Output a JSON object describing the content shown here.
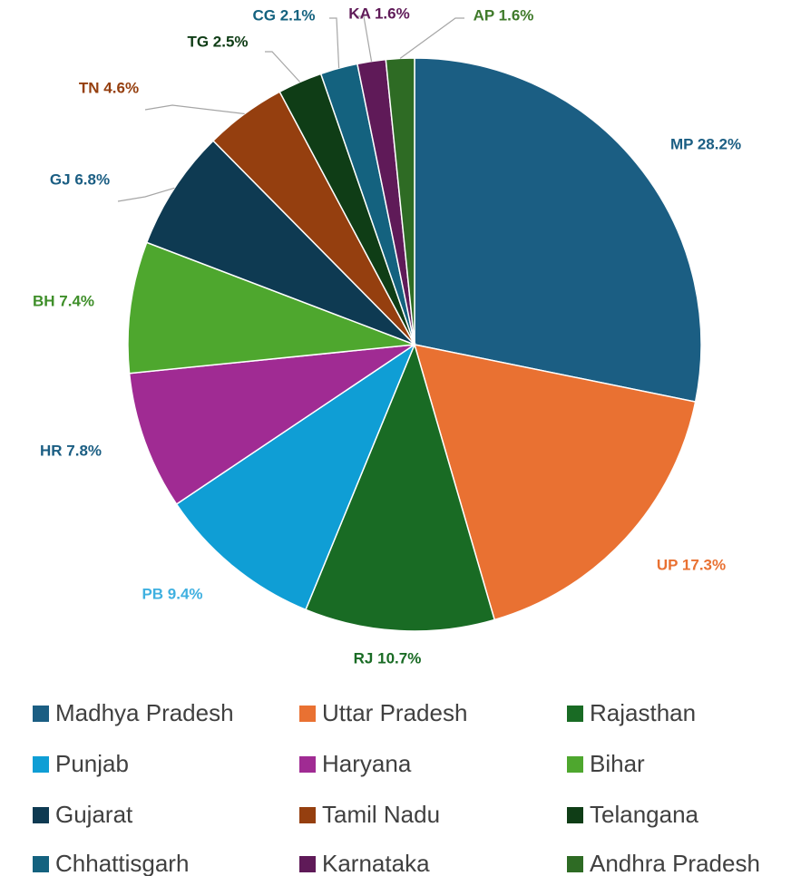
{
  "chart_data": {
    "type": "pie",
    "categories": [
      "Madhya Pradesh",
      "Uttar Pradesh",
      "Rajasthan",
      "Punjab",
      "Haryana",
      "Bihar",
      "Gujarat",
      "Tamil Nadu",
      "Telangana",
      "Chhattisgarh",
      "Karnataka",
      "Andhra Pradesh"
    ],
    "values": [
      28.2,
      17.3,
      10.7,
      9.4,
      7.8,
      7.4,
      6.8,
      4.6,
      2.5,
      2.1,
      1.6,
      1.6
    ],
    "value_labels": [
      "MP 28.2%",
      "UP 17.3%",
      "RJ 10.7%",
      "PB 9.4%",
      "HR 7.8%",
      "BH 7.4%",
      "GJ 6.8%",
      "TN 4.6%",
      "TG 2.5%",
      "CG 2.1%",
      "KA 1.6%",
      "AP 1.6%"
    ],
    "colors": [
      "#1b5e83",
      "#e97132",
      "#196b24",
      "#0f9ed5",
      "#a02b93",
      "#4ea72e",
      "#0e3a52",
      "#953f0f",
      "#0f3d16",
      "#14627f",
      "#5f1a58",
      "#2e6b24"
    ],
    "label_colors": [
      "#1b5e83",
      "#e97132",
      "#196b24",
      "#3fb0e0",
      "#1b5e83",
      "#3f8f2a",
      "#1b5e83",
      "#953f0f",
      "#0f3d16",
      "#14627f",
      "#5f1a58",
      "#3f7a2a"
    ],
    "legend": "bottom"
  }
}
